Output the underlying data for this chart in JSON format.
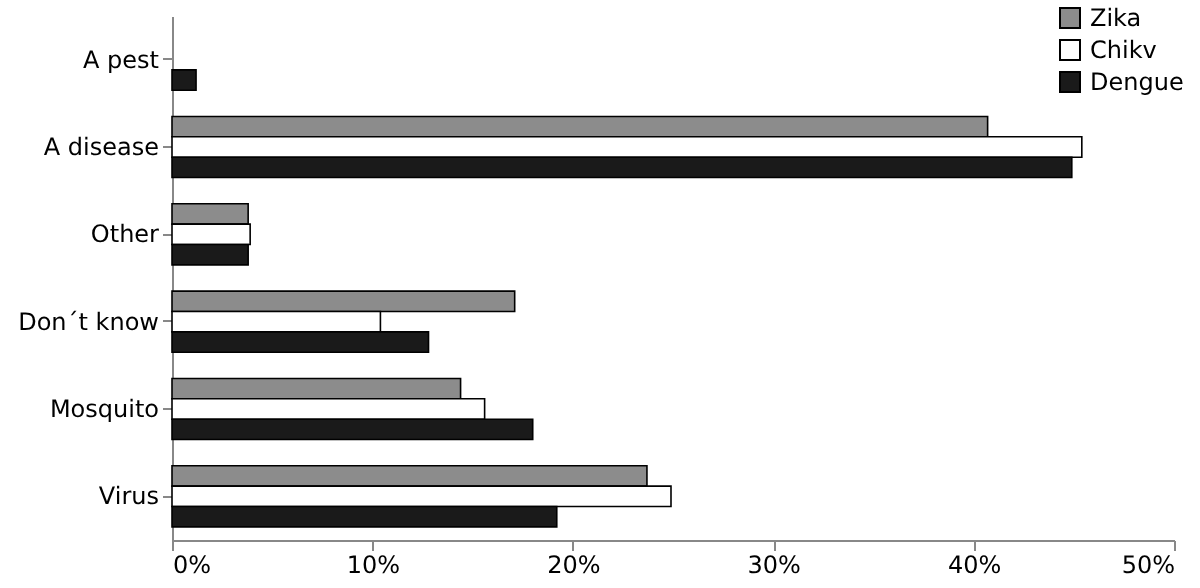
{
  "chart_data": {
    "type": "bar",
    "orientation": "horizontal",
    "categories": [
      "A pest",
      "A disease",
      "Other",
      "Don´t know",
      "Mosquito",
      "Virus"
    ],
    "series": [
      {
        "name": "Zika",
        "color": "#8c8c8c",
        "values": [
          0,
          40.7,
          3.8,
          17.1,
          14.4,
          23.7
        ]
      },
      {
        "name": "Chikv",
        "color": "#ffffff",
        "values": [
          0,
          45.4,
          3.9,
          10.4,
          15.6,
          24.9
        ]
      },
      {
        "name": "Dengue",
        "color": "#1a1a1a",
        "values": [
          1.2,
          44.9,
          3.8,
          12.8,
          18.0,
          19.2
        ]
      }
    ],
    "xlim": [
      0,
      50
    ],
    "xticks": [
      {
        "value": 0,
        "label": "0%"
      },
      {
        "value": 10,
        "label": "10%"
      },
      {
        "value": 20,
        "label": "20%"
      },
      {
        "value": 30,
        "label": "30%"
      },
      {
        "value": 40,
        "label": "40%"
      },
      {
        "value": 50,
        "label": "50%"
      }
    ],
    "grid": false,
    "legend": "top right"
  }
}
